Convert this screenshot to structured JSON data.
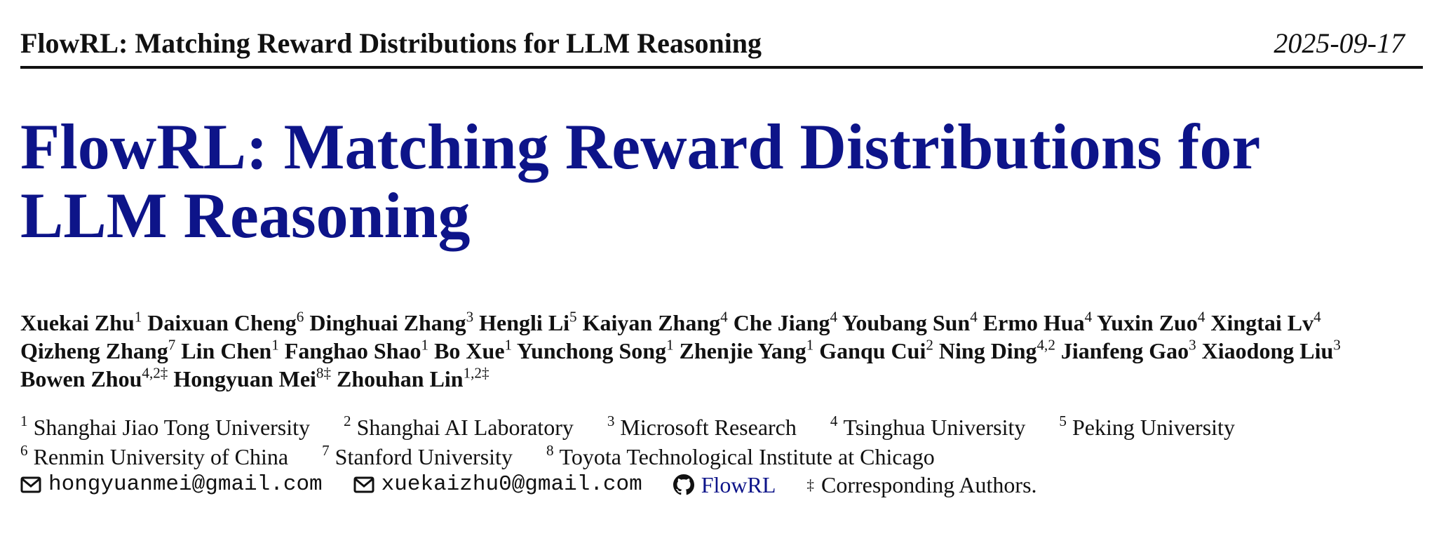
{
  "header": {
    "title": "FlowRL: Matching Reward Distributions for LLM Reasoning",
    "date": "2025-09-17"
  },
  "title": "FlowRL: Matching Reward Distributions for LLM Reasoning",
  "authors": [
    {
      "name": "Xuekai Zhu",
      "affil": "1"
    },
    {
      "name": "Daixuan Cheng",
      "affil": "6"
    },
    {
      "name": "Dinghuai Zhang",
      "affil": "3"
    },
    {
      "name": "Hengli Li",
      "affil": "5"
    },
    {
      "name": "Kaiyan Zhang",
      "affil": "4"
    },
    {
      "name": "Che Jiang",
      "affil": "4"
    },
    {
      "name": "Youbang Sun",
      "affil": "4"
    },
    {
      "name": "Ermo Hua",
      "affil": "4"
    },
    {
      "name": "Yuxin Zuo",
      "affil": "4"
    },
    {
      "name": "Xingtai Lv",
      "affil": "4"
    },
    {
      "name": "Qizheng Zhang",
      "affil": "7"
    },
    {
      "name": "Lin Chen",
      "affil": "1"
    },
    {
      "name": "Fanghao Shao",
      "affil": "1"
    },
    {
      "name": "Bo Xue",
      "affil": "1"
    },
    {
      "name": "Yunchong Song",
      "affil": "1"
    },
    {
      "name": "Zhenjie Yang",
      "affil": "1"
    },
    {
      "name": "Ganqu Cui",
      "affil": "2"
    },
    {
      "name": "Ning Ding",
      "affil": "4,2"
    },
    {
      "name": "Jianfeng Gao",
      "affil": "3"
    },
    {
      "name": "Xiaodong Liu",
      "affil": "3"
    },
    {
      "name": "Bowen Zhou",
      "affil": "4,2‡"
    },
    {
      "name": "Hongyuan Mei",
      "affil": "8‡"
    },
    {
      "name": "Zhouhan Lin",
      "affil": "1,2‡"
    }
  ],
  "affiliations": [
    {
      "num": "1",
      "name": "Shanghai Jiao Tong University"
    },
    {
      "num": "2",
      "name": "Shanghai AI Laboratory"
    },
    {
      "num": "3",
      "name": "Microsoft Research"
    },
    {
      "num": "4",
      "name": "Tsinghua University"
    },
    {
      "num": "5",
      "name": "Peking University"
    },
    {
      "num": "6",
      "name": "Renmin University of China"
    },
    {
      "num": "7",
      "name": "Stanford University"
    },
    {
      "num": "8",
      "name": "Toyota Technological Institute at Chicago"
    }
  ],
  "contacts": {
    "emails": [
      "hongyuanmei@gmail.com",
      "xuekaizhu0@gmail.com"
    ],
    "github": "FlowRL",
    "corresponding_mark": "‡",
    "corresponding_text": "Corresponding Authors."
  }
}
